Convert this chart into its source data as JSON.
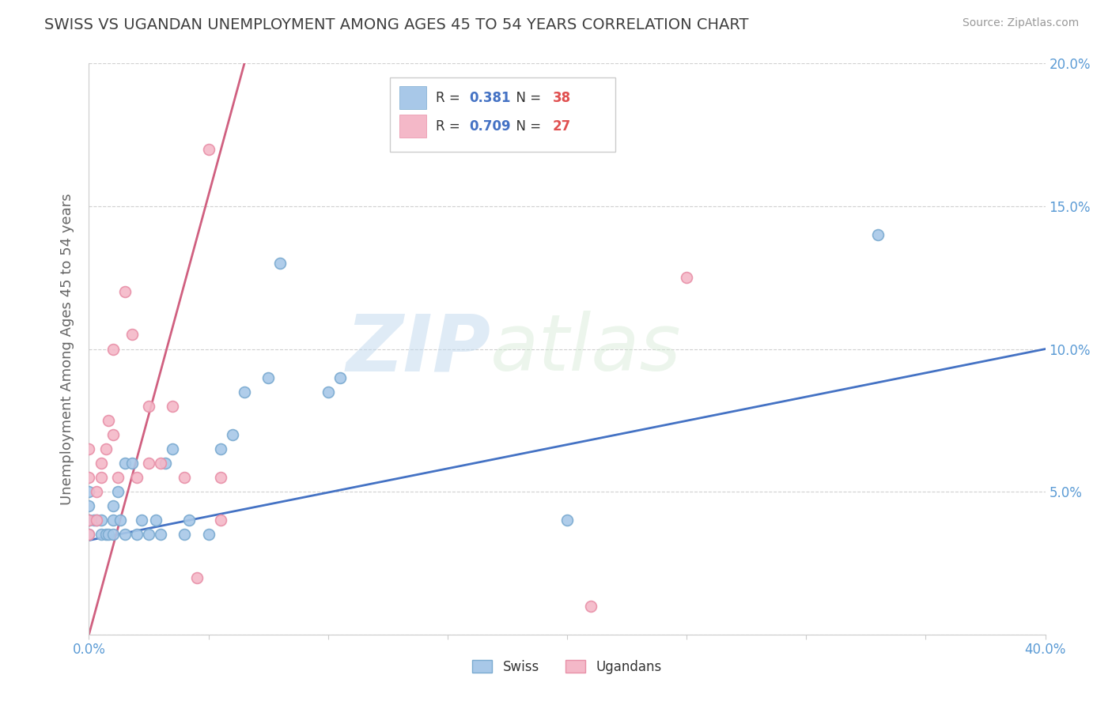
{
  "title": "SWISS VS UGANDAN UNEMPLOYMENT AMONG AGES 45 TO 54 YEARS CORRELATION CHART",
  "source": "Source: ZipAtlas.com",
  "ylabel": "Unemployment Among Ages 45 to 54 years",
  "xlim": [
    0.0,
    0.4
  ],
  "ylim": [
    0.0,
    0.2
  ],
  "xticks": [
    0.0,
    0.05,
    0.1,
    0.15,
    0.2,
    0.25,
    0.3,
    0.35,
    0.4
  ],
  "yticks": [
    0.0,
    0.05,
    0.1,
    0.15,
    0.2
  ],
  "xtick_labels": [
    "0.0%",
    "",
    "",
    "",
    "",
    "",
    "",
    "",
    "40.0%"
  ],
  "ytick_labels_right": [
    "",
    "5.0%",
    "10.0%",
    "15.0%",
    "20.0%"
  ],
  "swiss_color": "#a8c8e8",
  "ugandan_color": "#f4b8c8",
  "swiss_edge_color": "#7aaad0",
  "ugandan_edge_color": "#e890a8",
  "swiss_line_color": "#4472c4",
  "ugandan_line_color": "#d06080",
  "swiss_r": 0.381,
  "swiss_n": 38,
  "ugandan_r": 0.709,
  "ugandan_n": 27,
  "swiss_x": [
    0.0,
    0.0,
    0.0,
    0.0,
    0.0,
    0.002,
    0.003,
    0.005,
    0.005,
    0.007,
    0.008,
    0.01,
    0.01,
    0.01,
    0.012,
    0.013,
    0.015,
    0.015,
    0.018,
    0.02,
    0.022,
    0.025,
    0.028,
    0.03,
    0.032,
    0.035,
    0.04,
    0.042,
    0.05,
    0.055,
    0.06,
    0.065,
    0.075,
    0.08,
    0.1,
    0.105,
    0.2,
    0.33
  ],
  "swiss_y": [
    0.035,
    0.04,
    0.04,
    0.045,
    0.05,
    0.04,
    0.04,
    0.04,
    0.035,
    0.035,
    0.035,
    0.035,
    0.04,
    0.045,
    0.05,
    0.04,
    0.035,
    0.06,
    0.06,
    0.035,
    0.04,
    0.035,
    0.04,
    0.035,
    0.06,
    0.065,
    0.035,
    0.04,
    0.035,
    0.065,
    0.07,
    0.085,
    0.09,
    0.13,
    0.085,
    0.09,
    0.04,
    0.14
  ],
  "ugandan_x": [
    0.0,
    0.0,
    0.0,
    0.0,
    0.003,
    0.003,
    0.005,
    0.005,
    0.007,
    0.008,
    0.01,
    0.01,
    0.012,
    0.015,
    0.018,
    0.02,
    0.025,
    0.025,
    0.03,
    0.035,
    0.04,
    0.045,
    0.05,
    0.055,
    0.055,
    0.21,
    0.25
  ],
  "ugandan_y": [
    0.035,
    0.04,
    0.065,
    0.055,
    0.04,
    0.05,
    0.055,
    0.06,
    0.065,
    0.075,
    0.07,
    0.1,
    0.055,
    0.12,
    0.105,
    0.055,
    0.06,
    0.08,
    0.06,
    0.08,
    0.055,
    0.02,
    0.17,
    0.04,
    0.055,
    0.01,
    0.125
  ],
  "swiss_line_x0": 0.0,
  "swiss_line_y0": 0.033,
  "swiss_line_x1": 0.4,
  "swiss_line_y1": 0.1,
  "ugandan_line_x0": 0.0,
  "ugandan_line_y0": 0.0,
  "ugandan_line_x1": 0.065,
  "ugandan_line_y1": 0.2,
  "watermark_zip": "ZIP",
  "watermark_atlas": "atlas",
  "background_color": "#ffffff",
  "grid_color": "#d0d0d0",
  "title_color": "#404040",
  "axis_label_color": "#5b9bd5"
}
